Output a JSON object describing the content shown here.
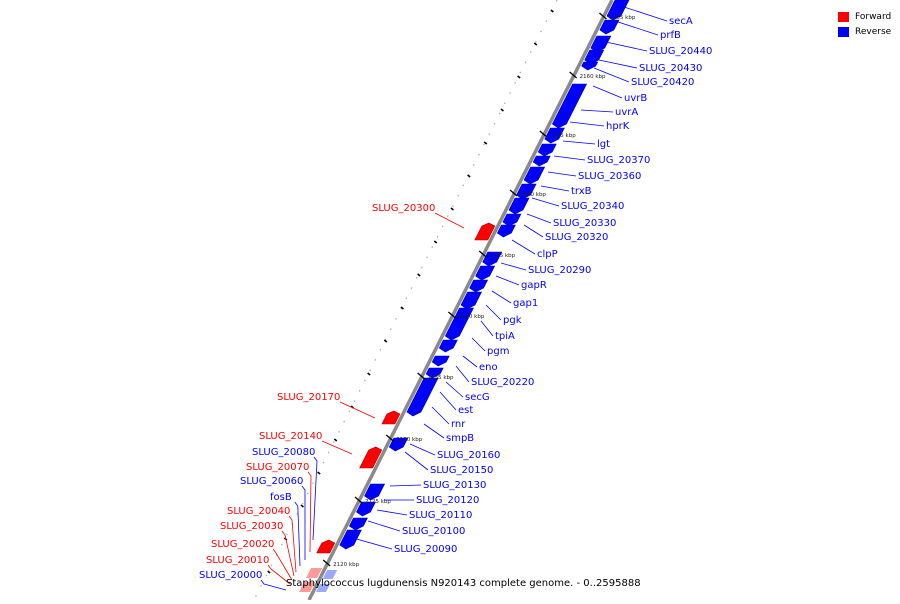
{
  "legend": [
    {
      "label": "Forward",
      "color": "#ff0000"
    },
    {
      "label": "Reverse",
      "color": "#0000ff"
    }
  ],
  "caption": "Staphylococcus lugdunensis N920143 complete genome. - 0..2595888",
  "colors": {
    "forward": "#ff0000",
    "reverse": "#0000ff",
    "backbone": "#8a8a8a"
  },
  "ticks": [
    "2120 kbp",
    "2125 kbp",
    "2130 kbp",
    "2135 kbp",
    "2140 kbp",
    "2145 kbp",
    "2150 kbp",
    "2155 kbp",
    "2160 kbp",
    "2165 kbp"
  ],
  "reverse_labels": [
    "secA",
    "prfB",
    "SLUG_20440",
    "SLUG_20430",
    "SLUG_20420",
    "uvrB",
    "uvrA",
    "hprK",
    "lgt",
    "SLUG_20370",
    "SLUG_20360",
    "trxB",
    "SLUG_20340",
    "SLUG_20330",
    "SLUG_20320",
    "clpP",
    "SLUG_20290",
    "gapR",
    "gap1",
    "pgk",
    "tpiA",
    "pgm",
    "eno",
    "SLUG_20220",
    "secG",
    "est",
    "rnr",
    "smpB",
    "SLUG_20160",
    "SLUG_20150",
    "SLUG_20130",
    "SLUG_20120",
    "SLUG_20110",
    "SLUG_20100",
    "SLUG_20090"
  ],
  "forward_labels": [
    "SLUG_20300",
    "SLUG_20170",
    "SLUG_20140"
  ],
  "bottom_left_labels": [
    {
      "text": "SLUG_20080",
      "strand": "reverse"
    },
    {
      "text": "SLUG_20070",
      "strand": "forward"
    },
    {
      "text": "SLUG_20060",
      "strand": "reverse"
    },
    {
      "text": "fosB",
      "strand": "reverse"
    },
    {
      "text": "SLUG_20040",
      "strand": "forward"
    },
    {
      "text": "SLUG_20030",
      "strand": "forward"
    },
    {
      "text": "SLUG_20020",
      "strand": "forward"
    },
    {
      "text": "SLUG_20010",
      "strand": "forward"
    },
    {
      "text": "SLUG_20000",
      "strand": "reverse"
    }
  ]
}
